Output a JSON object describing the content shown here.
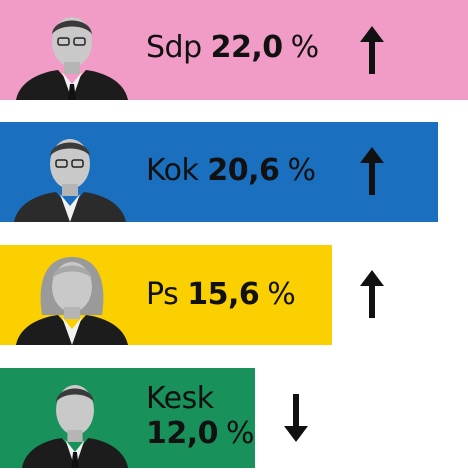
{
  "chart_data": {
    "type": "bar",
    "orientation": "horizontal",
    "unit": "%",
    "categories": [
      "Sdp",
      "Kok",
      "Ps",
      "Kesk"
    ],
    "values": [
      22.0,
      20.6,
      15.6,
      12.0
    ],
    "value_labels": [
      "22,0",
      "20,6",
      "15,6",
      "12,0"
    ],
    "trend": [
      "up",
      "up",
      "up",
      "down"
    ],
    "bar_colors": [
      "#f19cc6",
      "#1a6fbf",
      "#fad000",
      "#18925a"
    ],
    "xlim": [
      0,
      22.0
    ]
  }
}
